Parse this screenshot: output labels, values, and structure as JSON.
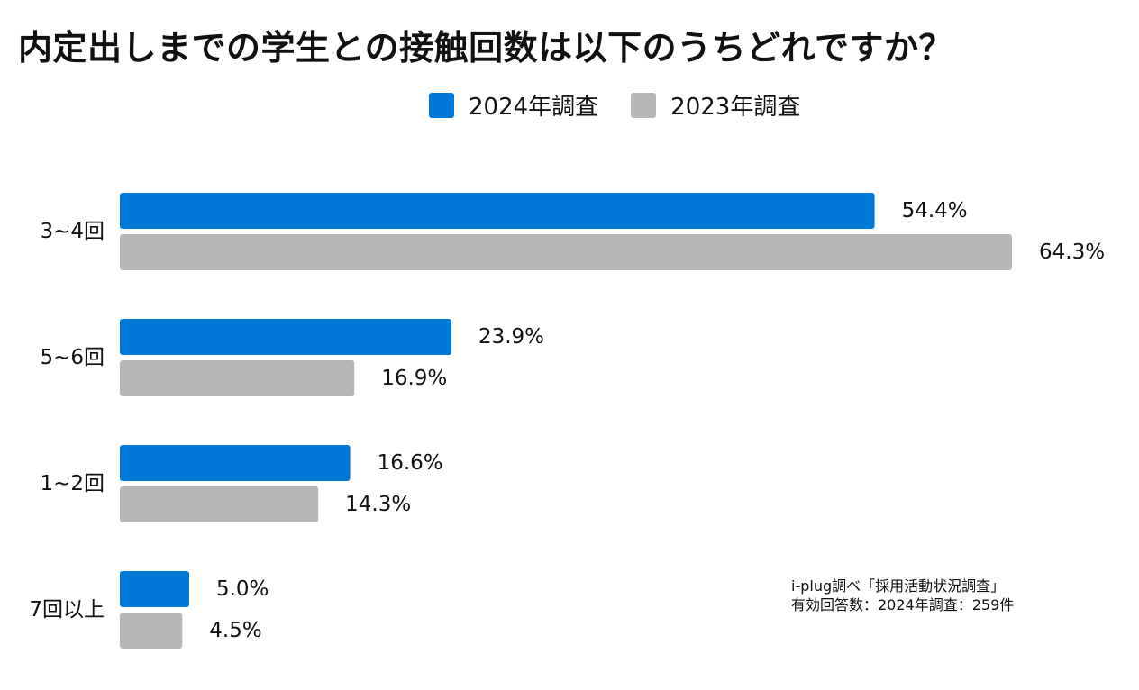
{
  "title": "内定出しまでの学生との接触回数は以下のうちどれですか？",
  "chart_data": {
    "type": "bar",
    "orientation": "horizontal",
    "title": "内定出しまでの学生との接触回数は以下のうちどれですか？",
    "categories": [
      "3~4回",
      "5~6回",
      "1~2回",
      "7回以上"
    ],
    "series": [
      {
        "name": "2024年調査",
        "color": "#0078d7",
        "values": [
          54.4,
          23.9,
          16.6,
          5.0
        ],
        "labels": [
          "54.4%",
          "23.9%",
          "16.6%",
          "5.0%"
        ]
      },
      {
        "name": "2023年調査",
        "color": "#b7b7b7",
        "values": [
          64.3,
          16.9,
          14.3,
          4.5
        ],
        "labels": [
          "64.3%",
          "16.9%",
          "14.3%",
          "4.5%"
        ]
      }
    ],
    "xlim": [
      0,
      64.3
    ],
    "xlabel": "",
    "ylabel": "",
    "grid": false,
    "legend_position": "top"
  },
  "note": {
    "line1": "i-plug調べ「採用活動状況調査」",
    "line2": "有効回答数：2024年調査：259件"
  }
}
